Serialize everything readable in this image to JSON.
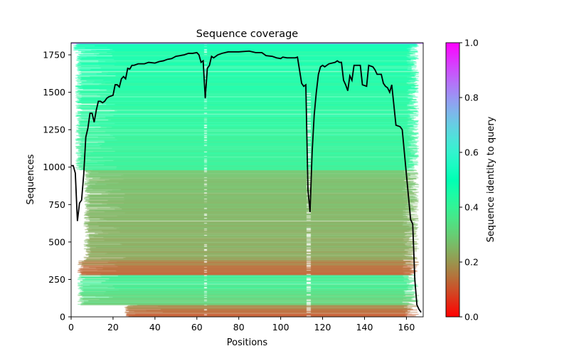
{
  "chart_data": {
    "type": "heatmap",
    "title": "Sequence coverage",
    "xlabel": "Positions",
    "ylabel": "Sequences",
    "xlim": [
      0,
      168
    ],
    "ylim": [
      0,
      1831
    ],
    "xticks": [
      0,
      20,
      40,
      60,
      80,
      100,
      120,
      140,
      160
    ],
    "yticks": [
      0,
      250,
      500,
      750,
      1000,
      1250,
      1500,
      1750
    ],
    "colorbar": {
      "label": "Sequence identity to query",
      "colormap": "rainbow_r",
      "range": [
        0,
        1
      ],
      "ticks": [
        "0.0",
        "0.2",
        "0.4",
        "0.6",
        "0.8",
        "1.0"
      ]
    },
    "identity_bands": [
      {
        "seq_from": 0,
        "seq_to": 80,
        "identity": [
          0.08,
          0.2
        ],
        "start_pos": 25
      },
      {
        "seq_from": 80,
        "seq_to": 280,
        "identity": [
          0.25,
          0.45
        ],
        "start_pos": 3
      },
      {
        "seq_from": 280,
        "seq_to": 380,
        "identity": [
          0.08,
          0.22
        ],
        "start_pos": 3
      },
      {
        "seq_from": 380,
        "seq_to": 980,
        "identity": [
          0.2,
          0.3
        ],
        "start_pos": 6
      },
      {
        "seq_from": 980,
        "seq_to": 1780,
        "identity": [
          0.36,
          0.5
        ],
        "start_pos": 2
      },
      {
        "seq_from": 1780,
        "seq_to": 1831,
        "identity": [
          0.45,
          0.55
        ],
        "start_pos": 1
      }
    ],
    "coverage_line": {
      "name": "coverage",
      "color": "#000000",
      "x": [
        0,
        1,
        2,
        3,
        4,
        5,
        6,
        7,
        8,
        9,
        10,
        11,
        12,
        13,
        14,
        15,
        16,
        17,
        18,
        20,
        21,
        22,
        23,
        24,
        25,
        26,
        27,
        28,
        29,
        30,
        32,
        35,
        37,
        40,
        42,
        44,
        46,
        48,
        50,
        52,
        54,
        56,
        58,
        60,
        61,
        62,
        63,
        64,
        65,
        66,
        67,
        68,
        70,
        72,
        75,
        80,
        85,
        88,
        91,
        93,
        96,
        98,
        100,
        101,
        103,
        107,
        108,
        110,
        111,
        112,
        113,
        114,
        115,
        116,
        117,
        118,
        119,
        120,
        121,
        123,
        126,
        127,
        128,
        129,
        130,
        131,
        132,
        133,
        134,
        135,
        138,
        139,
        141,
        142,
        144,
        145,
        146,
        148,
        149,
        150,
        151,
        152,
        153,
        155,
        157,
        158,
        159,
        160,
        161,
        162,
        163,
        164,
        165,
        166,
        167
      ],
      "y": [
        1010,
        1010,
        960,
        640,
        760,
        780,
        950,
        1200,
        1260,
        1360,
        1360,
        1300,
        1380,
        1440,
        1440,
        1430,
        1440,
        1460,
        1470,
        1480,
        1550,
        1550,
        1535,
        1590,
        1605,
        1590,
        1660,
        1655,
        1680,
        1680,
        1690,
        1690,
        1700,
        1695,
        1705,
        1710,
        1720,
        1725,
        1740,
        1745,
        1750,
        1760,
        1760,
        1765,
        1750,
        1700,
        1710,
        1460,
        1660,
        1680,
        1740,
        1730,
        1750,
        1760,
        1770,
        1770,
        1775,
        1765,
        1765,
        1745,
        1740,
        1730,
        1725,
        1735,
        1730,
        1730,
        1735,
        1560,
        1540,
        1550,
        850,
        700,
        1100,
        1350,
        1500,
        1620,
        1670,
        1680,
        1670,
        1690,
        1700,
        1710,
        1700,
        1700,
        1580,
        1550,
        1510,
        1610,
        1580,
        1680,
        1680,
        1550,
        1540,
        1680,
        1670,
        1650,
        1620,
        1620,
        1560,
        1540,
        1530,
        1500,
        1550,
        1280,
        1270,
        1250,
        1100,
        950,
        800,
        650,
        620,
        250,
        80,
        50,
        30
      ]
    }
  }
}
